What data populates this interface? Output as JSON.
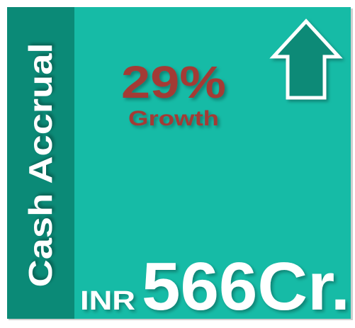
{
  "sidebar": {
    "label": "Cash Accrual"
  },
  "growth": {
    "value": "29%",
    "label": "Growth"
  },
  "amount": {
    "currency": "INR",
    "value": "566Cr."
  }
}
